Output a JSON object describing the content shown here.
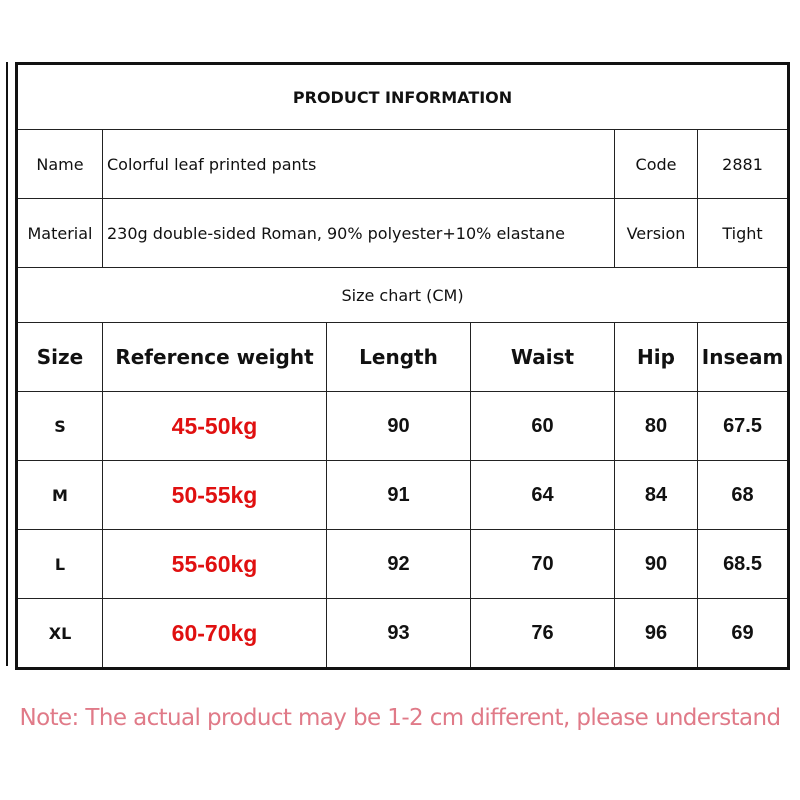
{
  "title": "PRODUCT INFORMATION",
  "info": {
    "name_label": "Name",
    "name_value": "Colorful leaf printed pants",
    "code_label": "Code",
    "code_value": "2881",
    "material_label": "Material",
    "material_value": "230g double-sided Roman, 90% polyester+10% elastane",
    "version_label": "Version",
    "version_value": "Tight"
  },
  "size_chart_title": "Size chart  (CM)",
  "headers": [
    "Size",
    "Reference weight",
    "Length",
    "Waist",
    "Hip",
    "Inseam"
  ],
  "rows": [
    [
      "S",
      "45-50kg",
      "90",
      "60",
      "80",
      "67.5"
    ],
    [
      "M",
      "50-55kg",
      "91",
      "64",
      "84",
      "68"
    ],
    [
      "L",
      "55-60kg",
      "92",
      "70",
      "90",
      "68.5"
    ],
    [
      "XL",
      "60-70kg",
      "93",
      "76",
      "96",
      "69"
    ]
  ],
  "note": "Note: The actual product may be 1-2 cm different, please understand",
  "colors": {
    "weight": "#e01010",
    "note": "#e07a88"
  }
}
